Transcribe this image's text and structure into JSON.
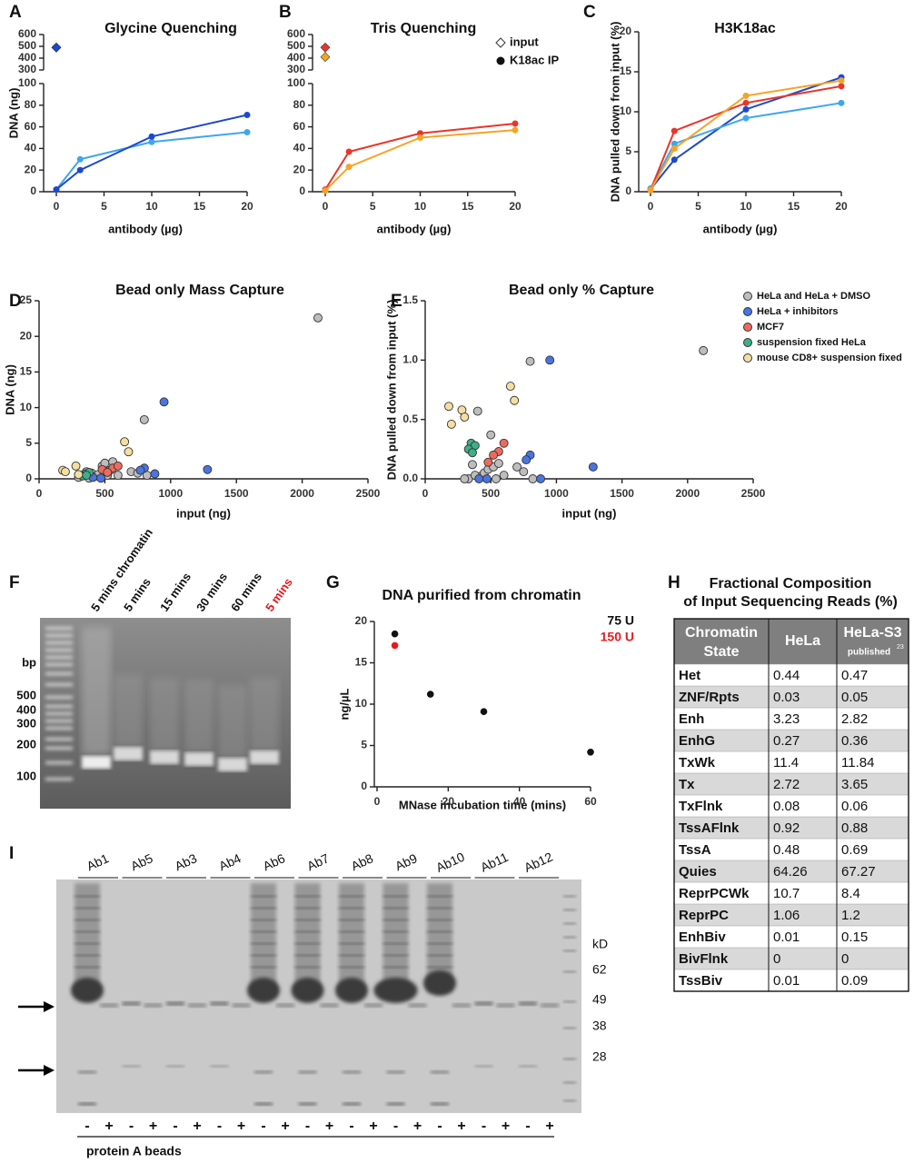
{
  "chart_data": [
    {
      "panel": "A",
      "type": "line",
      "title": "Glycine Quenching",
      "xlabel": "antibody (µg)",
      "ylabel": "DNA (ng)",
      "x": [
        0,
        2.5,
        10,
        20
      ],
      "xlim": [
        0,
        20
      ],
      "xticks": [
        0,
        5,
        10,
        15,
        20
      ],
      "ylim": [
        0,
        100
      ],
      "yticks": [
        0,
        20,
        40,
        60,
        80,
        100
      ],
      "ylim_break": [
        300,
        600
      ],
      "yticks_break": [
        300,
        400,
        500,
        600
      ],
      "series": [
        {
          "color": "#3ea6ee",
          "values": [
            2,
            30,
            46,
            55
          ],
          "input": 490
        },
        {
          "color": "#1c48cf",
          "values": [
            2,
            20,
            51,
            71
          ],
          "input": 490
        }
      ]
    },
    {
      "panel": "B",
      "type": "line",
      "title": "Tris Quenching",
      "xlabel": "antibody (µg)",
      "x": [
        0,
        2.5,
        10,
        20
      ],
      "xlim": [
        0,
        20
      ],
      "xticks": [
        0,
        5,
        10,
        15,
        20
      ],
      "ylim": [
        0,
        100
      ],
      "yticks": [
        0,
        20,
        40,
        60,
        80,
        100
      ],
      "ylim_break": [
        300,
        600
      ],
      "yticks_break": [
        300,
        400,
        500,
        600
      ],
      "series": [
        {
          "color": "#e8362a",
          "values": [
            2,
            37,
            54,
            63
          ],
          "input": 490
        },
        {
          "color": "#f5a425",
          "values": [
            1,
            23,
            50,
            57
          ],
          "input": 410
        }
      ],
      "legend": [
        {
          "name": "input",
          "marker": "diamond"
        },
        {
          "name": "K18ac IP",
          "marker": "circle"
        }
      ]
    },
    {
      "panel": "C",
      "type": "line",
      "title": "H3K18ac",
      "xlabel": "antibody (µg)",
      "ylabel": "DNA pulled down from input (%)",
      "x": [
        0,
        2.5,
        10,
        20
      ],
      "xlim": [
        0,
        20
      ],
      "xticks": [
        0,
        5,
        10,
        15,
        20
      ],
      "ylim": [
        0,
        20
      ],
      "yticks": [
        0,
        5,
        10,
        15,
        20
      ],
      "series": [
        {
          "color": "#1c48cf",
          "values": [
            0.3,
            4,
            10.3,
            14.3
          ]
        },
        {
          "color": "#3ea6ee",
          "values": [
            0.4,
            6,
            9.2,
            11.1
          ]
        },
        {
          "color": "#e8362a",
          "values": [
            0.2,
            7.6,
            11.1,
            13.2
          ]
        },
        {
          "color": "#f5a425",
          "values": [
            0.2,
            5.4,
            12,
            13.9
          ]
        }
      ]
    },
    {
      "panel": "D",
      "type": "scatter",
      "title": "Bead only Mass Capture",
      "xlabel": "input (ng)",
      "ylabel": "DNA (ng)",
      "xlim": [
        0,
        2500
      ],
      "xticks": [
        0,
        500,
        1000,
        1500,
        2000,
        2500
      ],
      "ylim": [
        0,
        25
      ],
      "yticks": [
        0,
        5,
        10,
        15,
        20,
        25
      ],
      "edgecolor": "#333333",
      "series": [
        {
          "color": "#bdbdbd",
          "x": [
            2120,
            800,
            330,
            360,
            400,
            420,
            450,
            480,
            500,
            520,
            560,
            600,
            700,
            750,
            820,
            300,
            380,
            540
          ],
          "values": [
            22.6,
            8.3,
            0.5,
            1,
            0.8,
            0.3,
            0.6,
            1.8,
            2.2,
            0.5,
            2.4,
            0.5,
            1,
            0.8,
            0.5,
            0.2,
            0.1,
            1.2
          ]
        },
        {
          "color": "#4a74e0",
          "x": [
            950,
            1280,
            800,
            770,
            880,
            410,
            470
          ],
          "values": [
            10.8,
            1.3,
            1.5,
            1.2,
            0.7,
            0.2,
            0.1
          ]
        },
        {
          "color": "#ee6a5c",
          "x": [
            560,
            600,
            480,
            520
          ],
          "values": [
            1.5,
            1.8,
            1.3,
            0.9
          ]
        },
        {
          "color": "#3fae8a",
          "x": [
            350,
            380,
            330,
            360
          ],
          "values": [
            0.7,
            0.9,
            0.4,
            0.5
          ]
        },
        {
          "color": "#f5dfa0",
          "x": [
            180,
            200,
            280,
            650,
            680,
            300
          ],
          "values": [
            1.2,
            1,
            1.8,
            5.2,
            3.8,
            0.6
          ]
        }
      ]
    },
    {
      "panel": "E",
      "type": "scatter",
      "title": "Bead only % Capture",
      "xlabel": "input (ng)",
      "ylabel": "DNA pulled down from input (%)",
      "xlim": [
        0,
        2500
      ],
      "xticks": [
        0,
        500,
        1000,
        1500,
        2000,
        2500
      ],
      "ylim": [
        0,
        1.5
      ],
      "yticks": [
        {
          "value": 0,
          "label": "0.0"
        },
        {
          "value": 0.5,
          "label": "0.5"
        },
        {
          "value": 1,
          "label": "1.0"
        },
        {
          "value": 1.5,
          "label": "1.5"
        }
      ],
      "edgecolor": "#333333",
      "legend_style": "marker",
      "series": [
        {
          "name": "HeLa and HeLa + DMSO",
          "color": "#bdbdbd",
          "x": [
            2120,
            800,
            330,
            360,
            400,
            420,
            450,
            480,
            500,
            520,
            560,
            600,
            700,
            750,
            820,
            300,
            380,
            540
          ],
          "values": [
            1.08,
            0.99,
            0,
            0.12,
            0.57,
            0.02,
            0.05,
            0.08,
            0.37,
            0.1,
            0.13,
            0.03,
            0.1,
            0.06,
            0,
            0,
            0.03,
            0
          ]
        },
        {
          "name": "HeLa + inhibitors",
          "color": "#4a74e0",
          "x": [
            950,
            1280,
            800,
            770,
            880,
            410,
            470
          ],
          "values": [
            1,
            0.1,
            0.2,
            0.16,
            0,
            0,
            0
          ]
        },
        {
          "name": "MCF7",
          "color": "#ee6a5c",
          "x": [
            560,
            600,
            480,
            520
          ],
          "values": [
            0.23,
            0.3,
            0.14,
            0.2
          ]
        },
        {
          "name": "suspension fixed HeLa",
          "color": "#3fae8a",
          "x": [
            350,
            380,
            330,
            360
          ],
          "values": [
            0.3,
            0.28,
            0.25,
            0.22
          ]
        },
        {
          "name": "mouse CD8+ suspension fixed",
          "color": "#f5dfa0",
          "x": [
            180,
            200,
            280,
            650,
            680,
            300
          ],
          "values": [
            0.61,
            0.46,
            0.58,
            0.78,
            0.66,
            0.52
          ]
        }
      ]
    },
    {
      "panel": "G",
      "type": "scatter",
      "title": "DNA purified from chromatin",
      "xlabel": "MNase incubation time (mins)",
      "ylabel": "ng/µL",
      "xlim": [
        0,
        60
      ],
      "xticks": [
        0,
        20,
        40,
        60
      ],
      "ylim": [
        0,
        20
      ],
      "yticks": [
        0,
        5,
        10,
        15,
        20
      ],
      "legend_style": "text",
      "series": [
        {
          "name": "75 U",
          "color": "#111111",
          "x": [
            5,
            15,
            30,
            60
          ],
          "values": [
            18.5,
            11.2,
            9.1,
            4.2
          ]
        },
        {
          "name": "150 U",
          "color": "#e8191c",
          "x": [
            5
          ],
          "values": [
            17.1
          ]
        }
      ]
    }
  ],
  "gel_f": {
    "panel": "F",
    "unit": "bp",
    "markers": [
      500,
      400,
      300,
      200,
      100
    ],
    "lanes": [
      {
        "label": "5 mins chromatin",
        "color": "#111111"
      },
      {
        "label": "5 mins",
        "color": "#111111"
      },
      {
        "label": "15 mins",
        "color": "#111111"
      },
      {
        "label": "30 mins",
        "color": "#111111"
      },
      {
        "label": "60 mins",
        "color": "#111111"
      },
      {
        "label": "5 mins",
        "color": "#e8191c"
      }
    ]
  },
  "table": {
    "panel": "H",
    "title": [
      "Fractional Composition",
      "of Input Sequencing Reads (%)"
    ],
    "header": [
      [
        "Chromatin",
        "State"
      ],
      [
        "HeLa"
      ],
      [
        "HeLa-S3",
        "published"
      ]
    ],
    "header_ref": "23",
    "rows": [
      [
        "Het",
        0.44,
        0.47
      ],
      [
        "ZNF/Rpts",
        0.03,
        0.05
      ],
      [
        "Enh",
        3.23,
        2.82
      ],
      [
        "EnhG",
        0.27,
        0.36
      ],
      [
        "TxWk",
        11.4,
        11.84
      ],
      [
        "Tx",
        2.72,
        3.65
      ],
      [
        "TxFlnk",
        0.08,
        0.06
      ],
      [
        "TssAFlnk",
        0.92,
        0.88
      ],
      [
        "TssA",
        0.48,
        0.69
      ],
      [
        "Quies",
        64.26,
        67.27
      ],
      [
        "ReprPCWk",
        10.7,
        8.4
      ],
      [
        "ReprPC",
        1.06,
        1.2
      ],
      [
        "EnhBiv",
        0.01,
        0.15
      ],
      [
        "BivFlnk",
        0,
        0
      ],
      [
        "TssBiv",
        0.01,
        0.09
      ]
    ]
  },
  "gel_i": {
    "panel": "I",
    "lanes": [
      "Ab1",
      "Ab5",
      "Ab3",
      "Ab4",
      "Ab6",
      "Ab7",
      "Ab8",
      "Ab9",
      "Ab10",
      "Ab11",
      "Ab12"
    ],
    "unit": "kD",
    "markers": [
      62,
      49,
      38,
      28
    ],
    "signs": [
      "-",
      "+"
    ],
    "xlabel": "protein A beads"
  }
}
